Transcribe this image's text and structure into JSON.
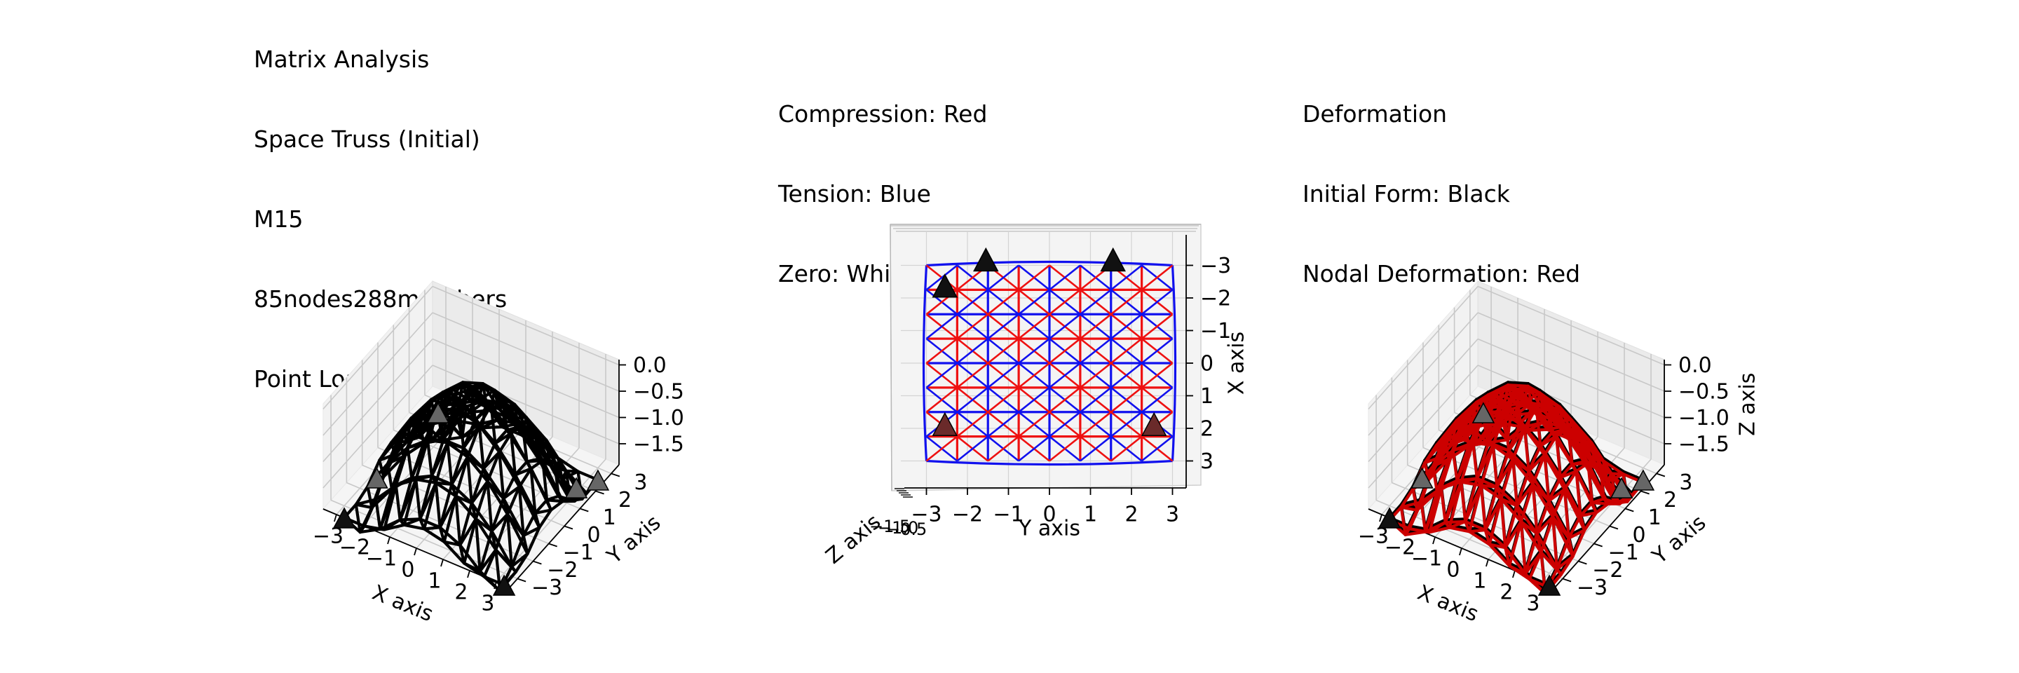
{
  "titles": {
    "left": [
      "Matrix Analysis",
      "Space Truss (Initial)",
      "M15",
      "85nodes288members",
      "Point Load at upper nodes"
    ],
    "middle": [
      "Compression: Red",
      "Tension: Blue",
      "Zero: White"
    ],
    "right": [
      "Deformation",
      "Initial Form: Black",
      "Nodal Deformation: Red"
    ]
  },
  "colors": {
    "compression": "#ee1111",
    "tension": "#1111ee",
    "initial_form": "#000000",
    "nodal_deformation": "#cc0000",
    "support": "#111111",
    "pane": "#f2f2f2"
  },
  "chart_data": [
    {
      "type": "3d-wireframe",
      "panel": "left",
      "xlabel": "X axis",
      "ylabel": "Y axis",
      "zlabel": "",
      "x_ticks": [
        "−3",
        "−2",
        "−1",
        "0",
        "1",
        "2",
        "3"
      ],
      "y_ticks": [
        "−3",
        "−2",
        "−1",
        "0",
        "1",
        "2",
        "3"
      ],
      "z_ticks": [
        "0.0",
        "−0.5",
        "−1.0",
        "−1.5"
      ],
      "xlim": [
        -3.5,
        3.5
      ],
      "ylim": [
        -3.5,
        3.5
      ],
      "zlim": [
        -1.9,
        0.1
      ],
      "grid": true,
      "nodes": 85,
      "members": 288,
      "series": [
        {
          "name": "Initial Form",
          "color": "#000000"
        }
      ]
    },
    {
      "type": "truss-plan",
      "panel": "middle",
      "xlabel": "Y axis",
      "ylabel": "X axis",
      "zlabel": "Z axis",
      "x_ticks": [
        "−3",
        "−2",
        "−1",
        "0",
        "1",
        "2",
        "3"
      ],
      "y_ticks": [
        "−3",
        "−2",
        "−1",
        "0",
        "1",
        "2",
        "3"
      ],
      "z_ticks": [
        "−1.5",
        "−1.0",
        "−0.5"
      ],
      "xlim": [
        -3.3,
        3.3
      ],
      "ylim": [
        -3.4,
        3.4
      ],
      "grid_spacing": 0.75,
      "grid_range": [
        -3,
        3
      ],
      "supports": [
        [
          -2.55,
          -2.2
        ],
        [
          -1.55,
          -3.0
        ],
        [
          1.55,
          -3.0
        ],
        [
          -2.55,
          2.05
        ],
        [
          2.55,
          2.05
        ]
      ],
      "series": [
        {
          "name": "Compression",
          "color": "#ee1111"
        },
        {
          "name": "Tension",
          "color": "#1111ee"
        },
        {
          "name": "Zero",
          "color": "#ffffff"
        }
      ]
    },
    {
      "type": "3d-wireframe",
      "panel": "right",
      "xlabel": "X axis",
      "ylabel": "Y axis",
      "zlabel": "Z axis",
      "x_ticks": [
        "−3",
        "−2",
        "−1",
        "0",
        "1",
        "2",
        "3"
      ],
      "y_ticks": [
        "−3",
        "−2",
        "−1",
        "0",
        "1",
        "2",
        "3"
      ],
      "z_ticks": [
        "0.0",
        "−0.5",
        "−1.0",
        "−1.5"
      ],
      "xlim": [
        -3.5,
        3.5
      ],
      "ylim": [
        -3.5,
        3.5
      ],
      "zlim": [
        -1.9,
        0.1
      ],
      "grid": true,
      "series": [
        {
          "name": "Initial Form",
          "color": "#000000"
        },
        {
          "name": "Nodal Deformation",
          "color": "#cc0000"
        }
      ]
    }
  ]
}
